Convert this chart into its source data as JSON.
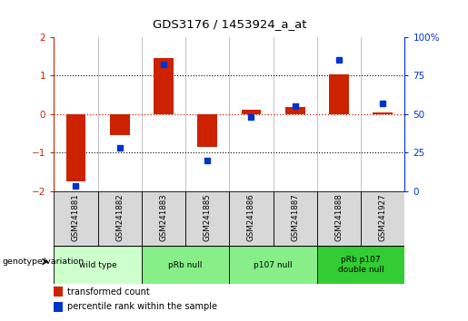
{
  "title": "GDS3176 / 1453924_a_at",
  "samples": [
    "GSM241881",
    "GSM241882",
    "GSM241883",
    "GSM241885",
    "GSM241886",
    "GSM241887",
    "GSM241888",
    "GSM241927"
  ],
  "red_values": [
    -1.75,
    -0.55,
    1.45,
    -0.85,
    0.12,
    0.18,
    1.02,
    0.04
  ],
  "blue_values": [
    3.5,
    28.0,
    82.0,
    20.0,
    48.0,
    55.0,
    85.0,
    57.0
  ],
  "left_ylim": [
    -2.0,
    2.0
  ],
  "right_ylim": [
    0,
    100
  ],
  "left_yticks": [
    -2,
    -1,
    0,
    1,
    2
  ],
  "right_yticks": [
    0,
    25,
    50,
    75,
    100
  ],
  "right_yticklabels": [
    "0",
    "25",
    "50",
    "75",
    "100%"
  ],
  "bar_color": "#cc2200",
  "dot_color": "#0033cc",
  "zero_line_color": "#cc2200",
  "legend_red_label": "transformed count",
  "legend_blue_label": "percentile rank within the sample",
  "genotype_label": "genotype/variation",
  "group_defs": [
    [
      0,
      1,
      "wild type",
      "#ccffcc"
    ],
    [
      2,
      3,
      "pRb null",
      "#88ee88"
    ],
    [
      4,
      5,
      "p107 null",
      "#88ee88"
    ],
    [
      6,
      7,
      "pRb p107\ndouble null",
      "#33cc33"
    ]
  ]
}
